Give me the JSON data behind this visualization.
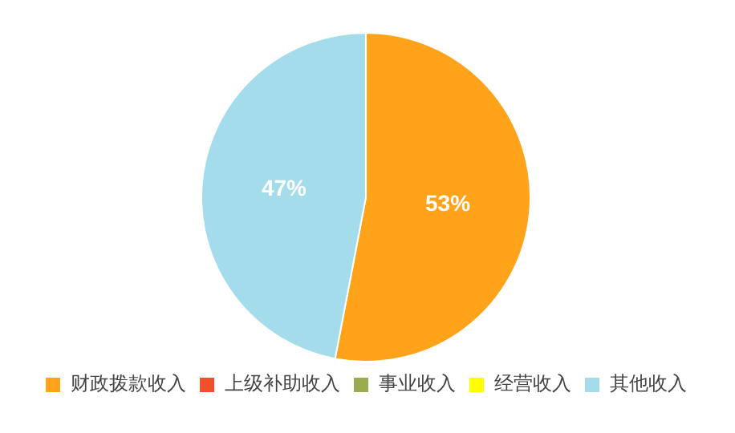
{
  "chart_data": {
    "type": "pie",
    "categories": [
      "财政拨款收入",
      "上级补助收入",
      "事业收入",
      "经营收入",
      "其他收入"
    ],
    "values": [
      53,
      0,
      0,
      0,
      47
    ],
    "colors": [
      "#ffa31a",
      "#f0502a",
      "#9bab4f",
      "#ffff00",
      "#a4dcec"
    ],
    "value_labels": [
      "53%",
      null,
      null,
      null,
      "47%"
    ],
    "legend": "bottom"
  }
}
